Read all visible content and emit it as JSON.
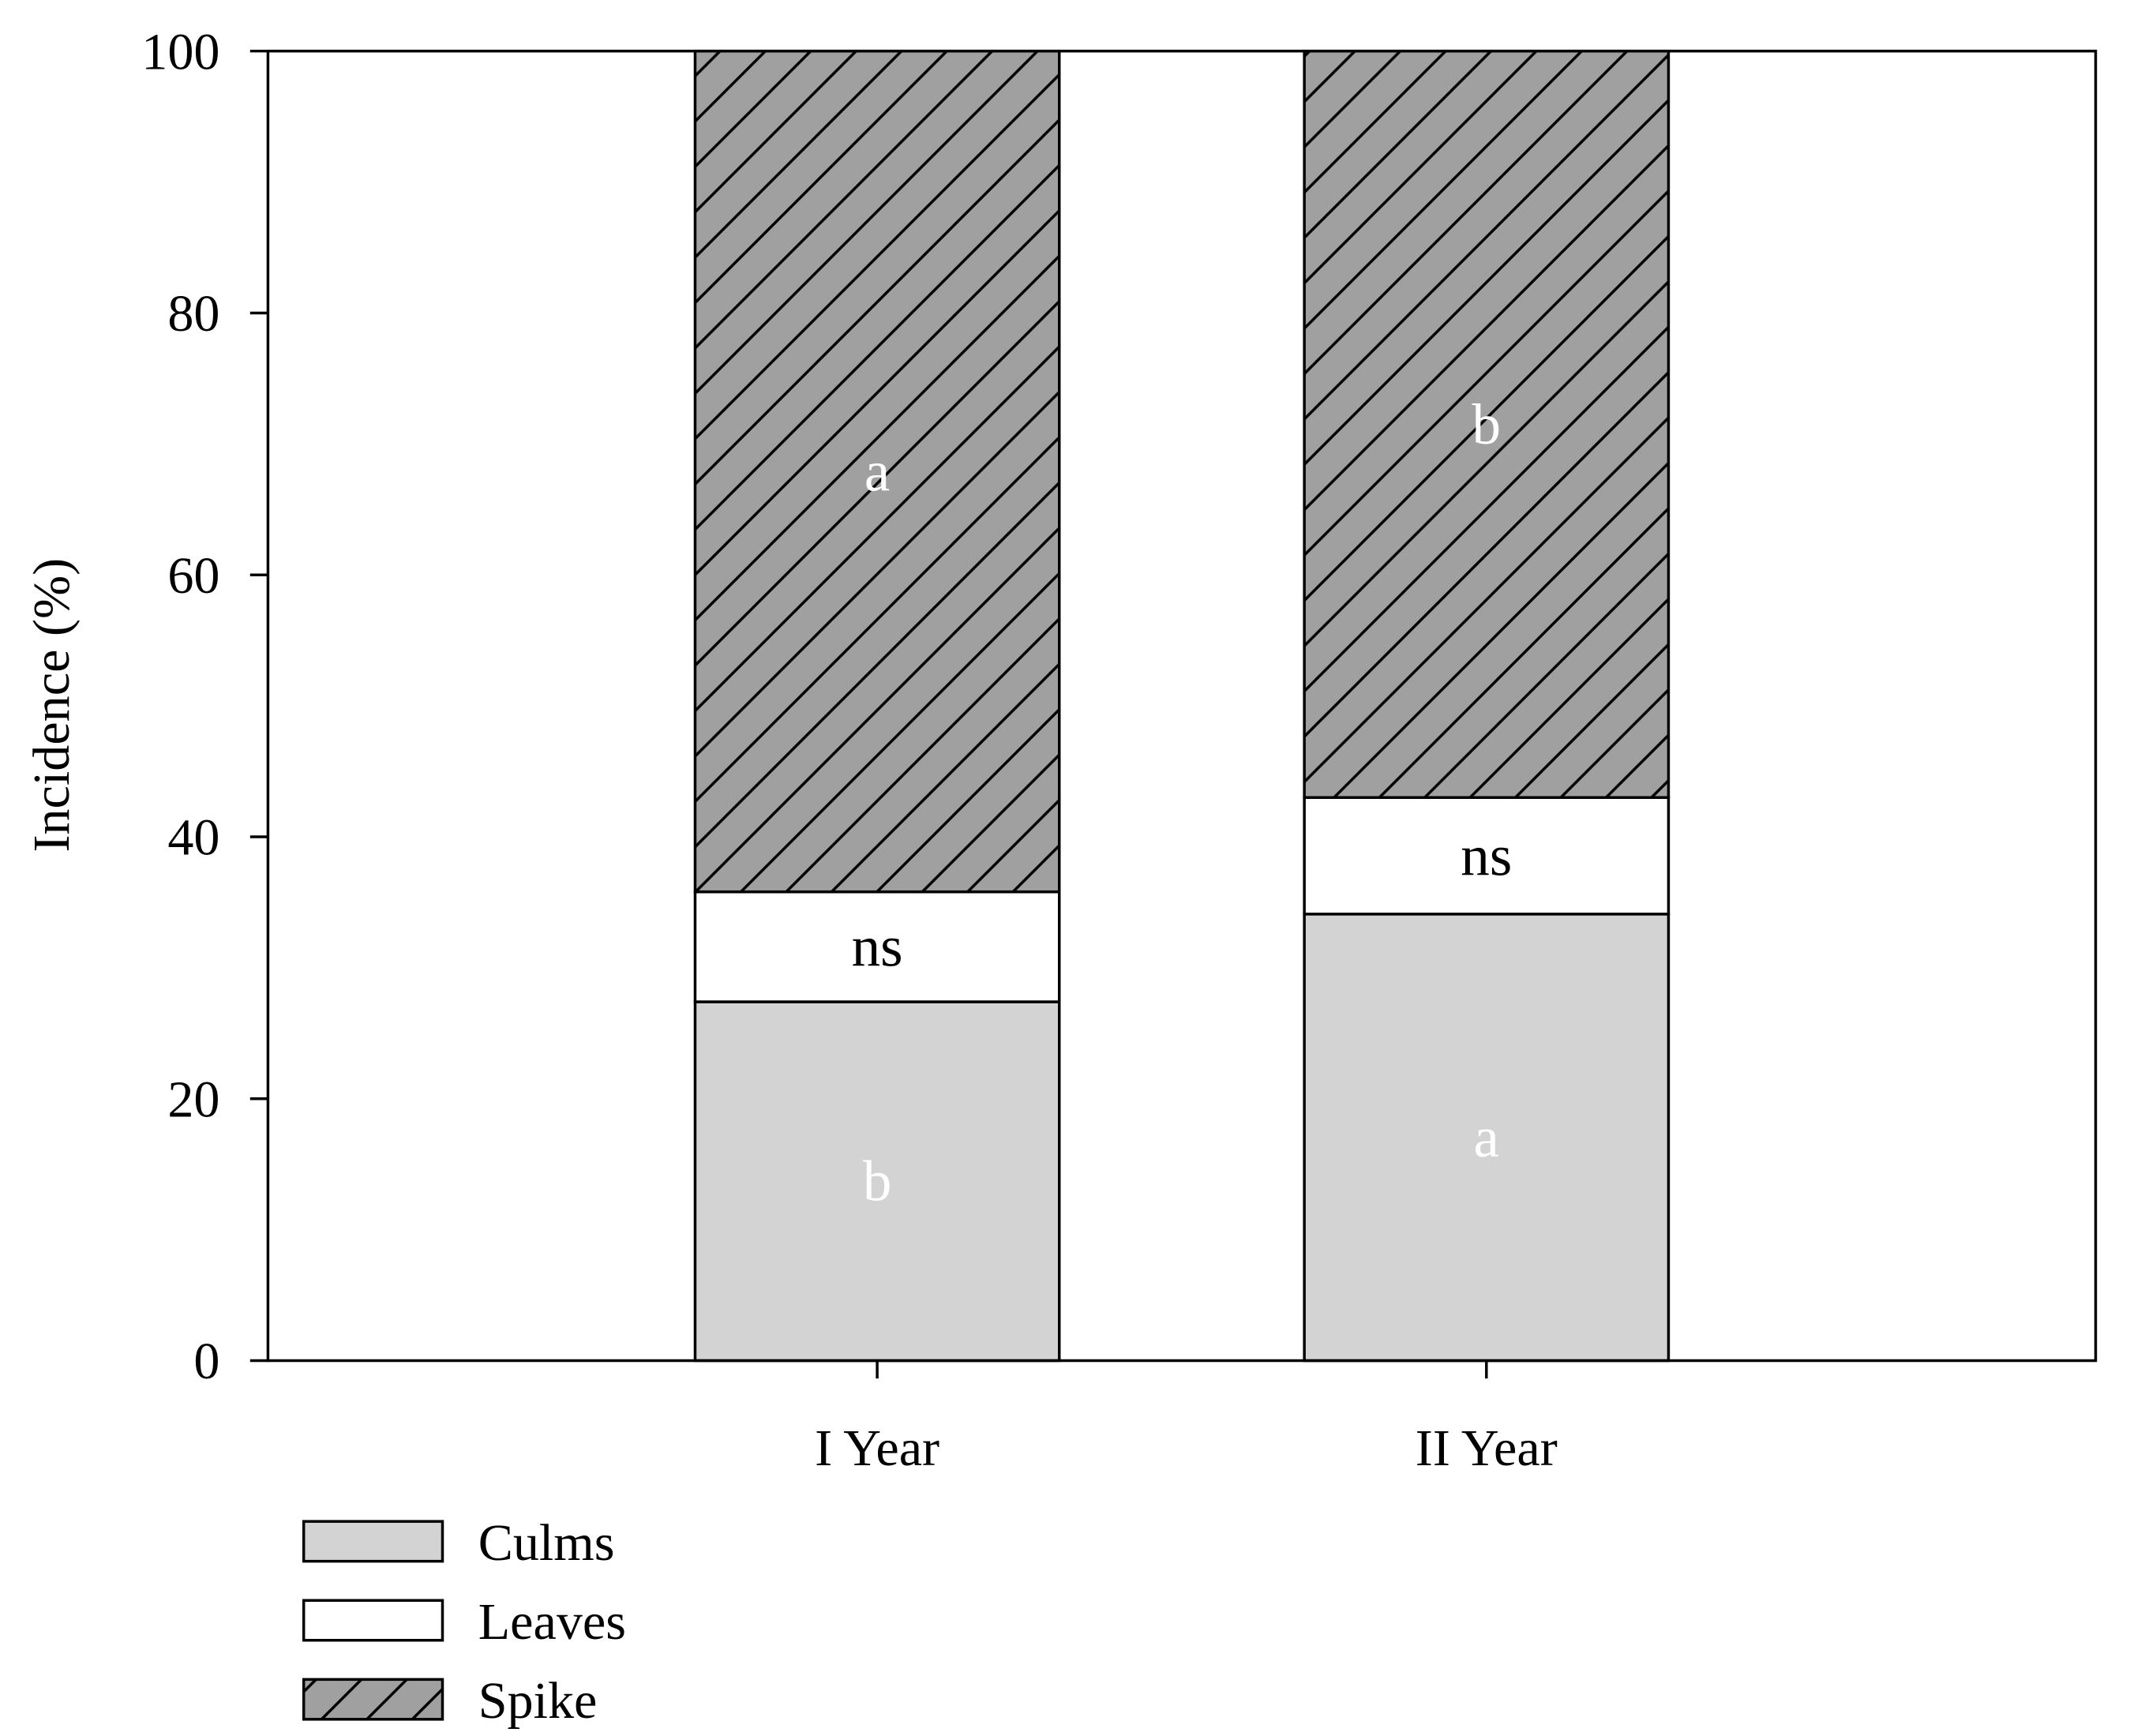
{
  "chart_data": {
    "type": "bar",
    "stacked": true,
    "title": "",
    "xlabel": "",
    "ylabel": "Incidence (%)",
    "ylim": [
      0,
      100
    ],
    "yticks": [
      "0",
      "20",
      "40",
      "60",
      "80",
      "100"
    ],
    "categories": [
      "I Year",
      "II Year"
    ],
    "series": [
      {
        "name": "Culms",
        "values": [
          27.4,
          34.1
        ],
        "color": "#d3d3d3",
        "hatch": false,
        "labels": [
          "b",
          "a"
        ],
        "label_color": "#ffffff"
      },
      {
        "name": "Leaves",
        "values": [
          8.4,
          8.9
        ],
        "color": "#ffffff",
        "hatch": false,
        "labels": [
          "ns",
          "ns"
        ],
        "label_color": "#000000"
      },
      {
        "name": "Spike",
        "values": [
          64.2,
          57.0
        ],
        "color": "#a0a0a0",
        "hatch": true,
        "labels": [
          "a",
          "b"
        ],
        "label_color": "#ffffff"
      }
    ],
    "grid": false,
    "legend_position": "bottom-left"
  }
}
